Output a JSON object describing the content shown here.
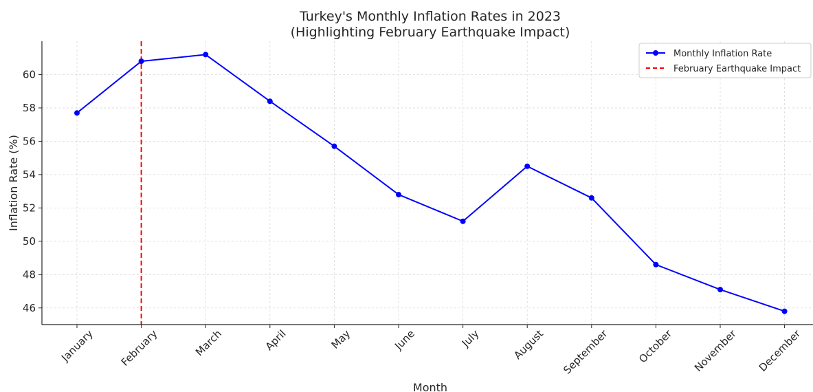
{
  "chart_data": {
    "type": "line",
    "title": "Turkey's Monthly Inflation Rates in 2023",
    "subtitle": "(Highlighting February Earthquake Impact)",
    "xlabel": "Month",
    "ylabel": "Inflation Rate (%)",
    "categories": [
      "January",
      "February",
      "March",
      "April",
      "May",
      "June",
      "July",
      "August",
      "September",
      "October",
      "November",
      "December"
    ],
    "series": [
      {
        "name": "Monthly Inflation Rate",
        "color": "#0000ff",
        "values": [
          57.7,
          60.8,
          61.2,
          58.4,
          55.7,
          52.8,
          51.2,
          54.5,
          52.6,
          48.6,
          47.1,
          45.8
        ]
      }
    ],
    "reference_line": {
      "name": "February Earthquake Impact",
      "category": "February",
      "color": "#ff0000",
      "style": "dashed"
    },
    "ylim": [
      45,
      62
    ],
    "yticks": [
      46,
      48,
      50,
      52,
      54,
      56,
      58,
      60
    ],
    "grid": true,
    "legend_position": "top-right"
  }
}
